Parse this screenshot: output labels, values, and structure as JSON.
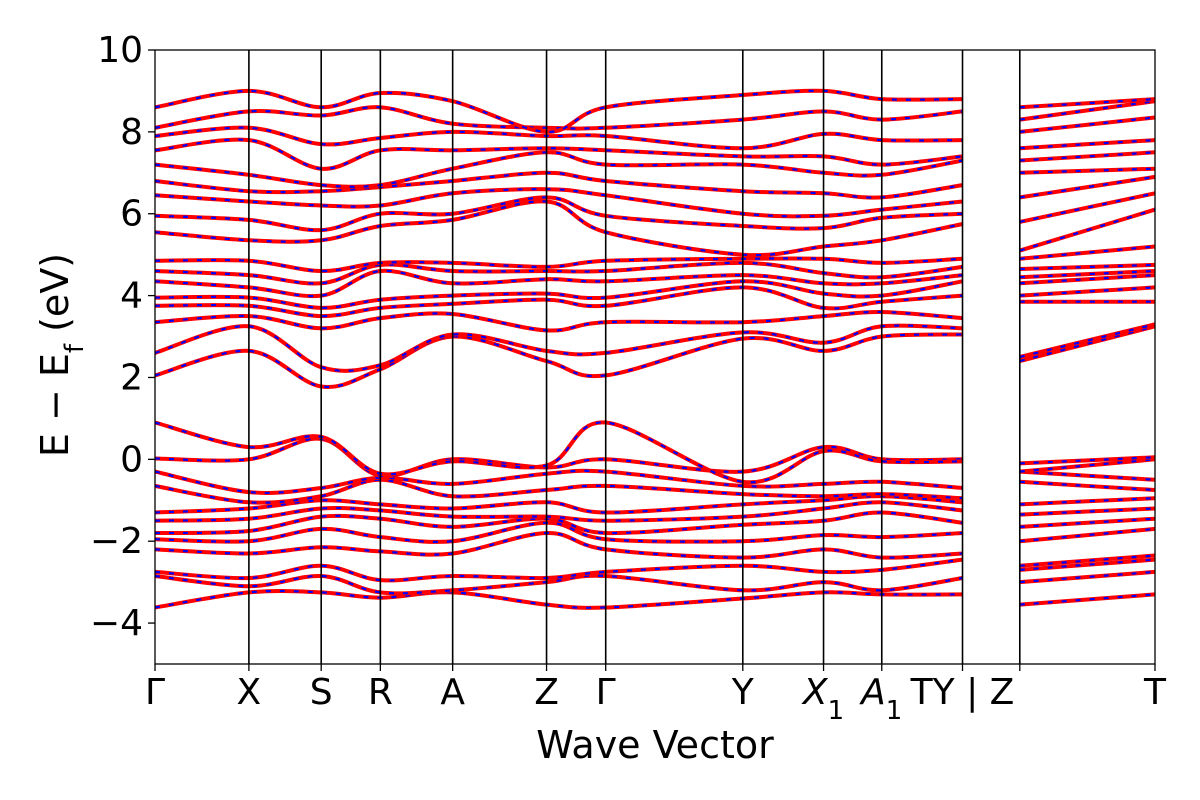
{
  "chart_data": {
    "type": "line",
    "title": "",
    "xlabel": "Wave Vector",
    "ylabel": "E − E_f (eV)",
    "ylabel_parts": {
      "main": "E − E",
      "sub": "f",
      "unit": " (eV)"
    },
    "ylim": [
      -5,
      10
    ],
    "yticks": [
      -4,
      -2,
      0,
      2,
      4,
      6,
      8,
      10
    ],
    "ytick_labels": [
      "−4",
      "−2",
      "0",
      "2",
      "4",
      "6",
      "8",
      "10"
    ],
    "grid": false,
    "legend": "none",
    "k_path": {
      "range": [
        0,
        10.65
      ],
      "points": [
        {
          "label": "Γ",
          "pos": 0.0
        },
        {
          "label": "X",
          "pos": 1.0
        },
        {
          "label": "S",
          "pos": 1.77
        },
        {
          "label": "R",
          "pos": 2.4
        },
        {
          "label": "A",
          "pos": 3.17
        },
        {
          "label": "Z",
          "pos": 4.17
        },
        {
          "label": "Γ",
          "pos": 4.8
        },
        {
          "label": "Y",
          "pos": 6.26
        },
        {
          "label": "X",
          "sub": "1",
          "pos": 7.12
        },
        {
          "label": "A",
          "sub": "1",
          "pos": 7.74
        },
        {
          "label": "TY | Z",
          "pos": 8.6
        },
        {
          "label": "",
          "pos": 9.21
        },
        {
          "label": "T",
          "pos": 10.65
        }
      ],
      "break_pos": 9.21
    },
    "series_styles": [
      {
        "color": "#ff0000",
        "style": "solid"
      },
      {
        "color": "#0000ff",
        "style": "dashed"
      }
    ],
    "bands": [
      {
        "x": [
          0,
          1,
          1.77,
          2.4,
          3.17,
          4.17,
          4.8,
          6.26,
          7.12,
          7.74,
          8.6,
          9.21,
          10.65
        ],
        "y": [
          -3.62,
          -3.25,
          -3.25,
          -3.38,
          -3.25,
          -3.55,
          -3.62,
          -3.4,
          -3.25,
          -3.3,
          -3.3,
          -3.55,
          -3.3
        ]
      },
      {
        "x": [
          0,
          1,
          1.77,
          2.4,
          3.17,
          4.17,
          4.8,
          6.26,
          7.12,
          7.74,
          8.6,
          9.21,
          10.65
        ],
        "y": [
          -2.85,
          -3.1,
          -2.85,
          -3.25,
          -3.2,
          -3.0,
          -2.85,
          -3.2,
          -3.0,
          -3.2,
          -2.9,
          -3.0,
          -2.75
        ]
      },
      {
        "x": [
          0,
          1,
          1.77,
          2.4,
          3.17,
          4.17,
          4.8,
          6.26,
          7.12,
          7.74,
          8.6,
          9.21,
          10.65
        ],
        "y": [
          -2.75,
          -2.9,
          -2.6,
          -2.95,
          -2.85,
          -2.9,
          -2.75,
          -2.6,
          -2.75,
          -2.7,
          -2.45,
          -2.7,
          -2.45
        ]
      },
      {
        "x": [
          0,
          1,
          1.77,
          2.4,
          3.17,
          4.17,
          4.8,
          6.26,
          7.12,
          7.74,
          8.6,
          9.21,
          10.65
        ],
        "y": [
          -2.2,
          -2.3,
          -2.15,
          -2.25,
          -2.3,
          -1.8,
          -2.2,
          -2.4,
          -2.2,
          -2.4,
          -2.3,
          -2.6,
          -2.35
        ]
      },
      {
        "x": [
          0,
          1,
          1.77,
          2.4,
          3.17,
          4.17,
          4.8,
          6.26,
          7.12,
          7.74,
          8.6,
          9.21,
          10.65
        ],
        "y": [
          -1.95,
          -2.0,
          -1.7,
          -1.9,
          -2.0,
          -1.55,
          -1.95,
          -2.0,
          -1.85,
          -1.9,
          -1.8,
          -2.0,
          -1.7
        ]
      },
      {
        "x": [
          0,
          1,
          1.77,
          2.4,
          3.17,
          4.17,
          4.8,
          6.26,
          7.12,
          7.74,
          8.6,
          9.21,
          10.65
        ],
        "y": [
          -1.8,
          -1.75,
          -1.4,
          -1.45,
          -1.65,
          -1.45,
          -1.8,
          -1.6,
          -1.5,
          -1.3,
          -1.55,
          -1.65,
          -1.45
        ]
      },
      {
        "x": [
          0,
          1,
          1.77,
          2.4,
          3.17,
          4.17,
          4.8,
          6.26,
          7.12,
          7.74,
          8.6,
          9.21,
          10.65
        ],
        "y": [
          -1.5,
          -1.45,
          -1.2,
          -1.25,
          -1.4,
          -1.4,
          -1.5,
          -1.4,
          -1.2,
          -1.05,
          -1.25,
          -1.35,
          -1.2
        ]
      },
      {
        "x": [
          0,
          1,
          1.77,
          2.4,
          3.17,
          4.17,
          4.8,
          6.26,
          7.12,
          7.74,
          8.6,
          9.21,
          10.65
        ],
        "y": [
          -1.3,
          -1.2,
          -1.0,
          -1.1,
          -1.2,
          -1.05,
          -1.3,
          -1.1,
          -1.0,
          -0.9,
          -1.05,
          -1.1,
          -0.95
        ]
      },
      {
        "x": [
          0,
          1,
          1.77,
          2.4,
          3.17,
          4.17,
          4.8,
          6.26,
          7.12,
          7.74,
          8.6,
          9.21,
          10.65
        ],
        "y": [
          -0.65,
          -1.05,
          -0.9,
          -0.5,
          -0.9,
          -0.75,
          -0.65,
          -0.85,
          -0.9,
          -0.85,
          -0.95,
          -0.55,
          -0.75
        ]
      },
      {
        "x": [
          0,
          1,
          1.77,
          2.4,
          3.17,
          4.17,
          4.8,
          6.26,
          7.12,
          7.74,
          8.6,
          9.21,
          10.65
        ],
        "y": [
          -0.3,
          -0.8,
          -0.7,
          -0.45,
          -0.6,
          -0.35,
          -0.3,
          -0.65,
          -0.6,
          -0.55,
          -0.7,
          -0.3,
          -0.5
        ]
      },
      {
        "x": [
          0,
          1,
          1.77,
          2.4,
          3.17,
          4.17,
          4.8,
          6.26,
          7.12,
          7.74,
          8.6,
          9.21,
          10.65
        ],
        "y": [
          0.02,
          0.0,
          0.5,
          -0.4,
          0.0,
          -0.2,
          0.0,
          -0.3,
          0.3,
          0.0,
          0.0,
          -0.3,
          0.0
        ]
      },
      {
        "x": [
          0,
          1,
          1.77,
          2.4,
          3.17,
          4.17,
          4.8,
          6.26,
          7.12,
          7.74,
          8.6,
          9.21,
          10.65
        ],
        "y": [
          0.9,
          0.3,
          0.55,
          -0.35,
          -0.05,
          -0.15,
          0.9,
          -0.55,
          0.2,
          -0.05,
          -0.05,
          -0.1,
          0.05
        ]
      },
      {
        "x": [
          0,
          1,
          1.77,
          2.4,
          3.17,
          4.17,
          4.8,
          6.26,
          7.12,
          7.74,
          8.6,
          9.21,
          10.65
        ],
        "y": [
          2.05,
          2.65,
          1.78,
          2.2,
          3.0,
          2.4,
          2.05,
          2.95,
          2.65,
          3.0,
          3.05,
          2.4,
          3.25
        ]
      },
      {
        "x": [
          0,
          1,
          1.77,
          2.4,
          3.17,
          4.17,
          4.8,
          6.26,
          7.12,
          7.74,
          8.6,
          9.21,
          10.65
        ],
        "y": [
          2.6,
          3.25,
          2.25,
          2.3,
          3.05,
          2.65,
          2.6,
          3.1,
          2.85,
          3.25,
          3.2,
          2.5,
          3.3
        ]
      },
      {
        "x": [
          0,
          1,
          1.77,
          2.4,
          3.17,
          4.17,
          4.8,
          6.26,
          7.12,
          7.74,
          8.6,
          9.21,
          10.65
        ],
        "y": [
          3.35,
          3.5,
          3.2,
          3.45,
          3.55,
          3.15,
          3.35,
          3.35,
          3.5,
          3.6,
          3.45,
          3.85,
          3.85
        ]
      },
      {
        "x": [
          0,
          1,
          1.77,
          2.4,
          3.17,
          4.17,
          4.8,
          6.26,
          7.12,
          7.74,
          8.6,
          9.21,
          10.65
        ],
        "y": [
          3.75,
          3.75,
          3.5,
          3.7,
          3.8,
          3.9,
          3.75,
          4.2,
          3.7,
          3.85,
          4.0,
          4.0,
          4.2
        ]
      },
      {
        "x": [
          0,
          1,
          1.77,
          2.4,
          3.17,
          4.17,
          4.8,
          6.26,
          7.12,
          7.74,
          8.6,
          9.21,
          10.65
        ],
        "y": [
          3.95,
          3.95,
          3.7,
          3.9,
          4.0,
          4.05,
          3.95,
          4.35,
          4.05,
          4.0,
          4.35,
          4.3,
          4.5
        ]
      },
      {
        "x": [
          0,
          1,
          1.77,
          2.4,
          3.17,
          4.17,
          4.8,
          6.26,
          7.12,
          7.74,
          8.6,
          9.21,
          10.65
        ],
        "y": [
          4.35,
          4.2,
          4.0,
          4.6,
          4.3,
          4.4,
          4.35,
          4.5,
          4.3,
          4.3,
          4.5,
          4.45,
          4.6
        ]
      },
      {
        "x": [
          0,
          1,
          1.77,
          2.4,
          3.17,
          4.17,
          4.8,
          6.26,
          7.12,
          7.74,
          8.6,
          9.21,
          10.65
        ],
        "y": [
          4.6,
          4.5,
          4.3,
          4.75,
          4.6,
          4.6,
          4.6,
          4.8,
          4.55,
          4.45,
          4.7,
          4.65,
          4.75
        ]
      },
      {
        "x": [
          0,
          1,
          1.77,
          2.4,
          3.17,
          4.17,
          4.8,
          6.26,
          7.12,
          7.74,
          8.6,
          9.21,
          10.65
        ],
        "y": [
          4.85,
          4.85,
          4.6,
          4.8,
          4.8,
          4.7,
          4.85,
          4.9,
          4.9,
          4.8,
          4.9,
          4.9,
          5.2
        ]
      },
      {
        "x": [
          0,
          1,
          1.77,
          2.4,
          3.17,
          4.17,
          4.8,
          6.26,
          7.12,
          7.74,
          8.6,
          9.21,
          10.65
        ],
        "y": [
          5.55,
          5.35,
          5.35,
          5.7,
          5.85,
          6.3,
          5.55,
          5.0,
          5.2,
          5.35,
          5.75,
          5.1,
          6.1
        ]
      },
      {
        "x": [
          0,
          1,
          1.77,
          2.4,
          3.17,
          4.17,
          4.8,
          6.26,
          7.12,
          7.74,
          8.6,
          9.21,
          10.65
        ],
        "y": [
          5.95,
          5.85,
          5.6,
          6.0,
          6.0,
          6.4,
          5.95,
          5.7,
          5.65,
          5.9,
          6.0,
          5.8,
          6.5
        ]
      },
      {
        "x": [
          0,
          1,
          1.77,
          2.4,
          3.17,
          4.17,
          4.8,
          6.26,
          7.12,
          7.74,
          8.6,
          9.21,
          10.65
        ],
        "y": [
          6.45,
          6.3,
          6.2,
          6.2,
          6.5,
          6.6,
          6.45,
          6.0,
          5.95,
          6.1,
          6.3,
          6.4,
          6.9
        ]
      },
      {
        "x": [
          0,
          1,
          1.77,
          2.4,
          3.17,
          4.17,
          4.8,
          6.26,
          7.12,
          7.74,
          8.6,
          9.21,
          10.65
        ],
        "y": [
          6.8,
          6.55,
          6.55,
          6.65,
          6.8,
          7.0,
          6.8,
          6.55,
          6.5,
          6.4,
          6.7,
          7.0,
          7.1
        ]
      },
      {
        "x": [
          0,
          1,
          1.77,
          2.4,
          3.17,
          4.17,
          4.8,
          6.26,
          7.12,
          7.74,
          8.6,
          9.21,
          10.65
        ],
        "y": [
          7.2,
          6.95,
          6.7,
          6.7,
          7.1,
          7.5,
          7.2,
          7.2,
          7.0,
          6.95,
          7.3,
          7.3,
          7.5
        ]
      },
      {
        "x": [
          0,
          1,
          1.77,
          2.4,
          3.17,
          4.17,
          4.8,
          6.26,
          7.12,
          7.74,
          8.6,
          9.21,
          10.65
        ],
        "y": [
          7.55,
          7.8,
          7.1,
          7.55,
          7.55,
          7.6,
          7.55,
          7.4,
          7.4,
          7.2,
          7.4,
          7.6,
          7.8
        ]
      },
      {
        "x": [
          0,
          1,
          1.77,
          2.4,
          3.17,
          4.17,
          4.8,
          6.26,
          7.12,
          7.74,
          8.6,
          9.21,
          10.65
        ],
        "y": [
          7.9,
          8.1,
          7.7,
          7.85,
          8.0,
          7.9,
          7.9,
          7.6,
          7.95,
          7.8,
          7.8,
          8.0,
          8.35
        ]
      },
      {
        "x": [
          0,
          1,
          1.77,
          2.4,
          3.17,
          4.17,
          4.8,
          6.26,
          7.12,
          7.74,
          8.6,
          9.21,
          10.65
        ],
        "y": [
          8.1,
          8.5,
          8.4,
          8.6,
          8.2,
          8.1,
          8.1,
          8.3,
          8.5,
          8.3,
          8.5,
          8.3,
          8.75
        ]
      },
      {
        "x": [
          0,
          1,
          1.77,
          2.4,
          3.17,
          4.17,
          4.8,
          6.26,
          7.12,
          7.74,
          8.6,
          9.21,
          10.65
        ],
        "y": [
          8.6,
          9.0,
          8.6,
          8.95,
          8.75,
          8.0,
          8.6,
          8.9,
          9.0,
          8.8,
          8.8,
          8.6,
          8.8
        ]
      }
    ]
  }
}
